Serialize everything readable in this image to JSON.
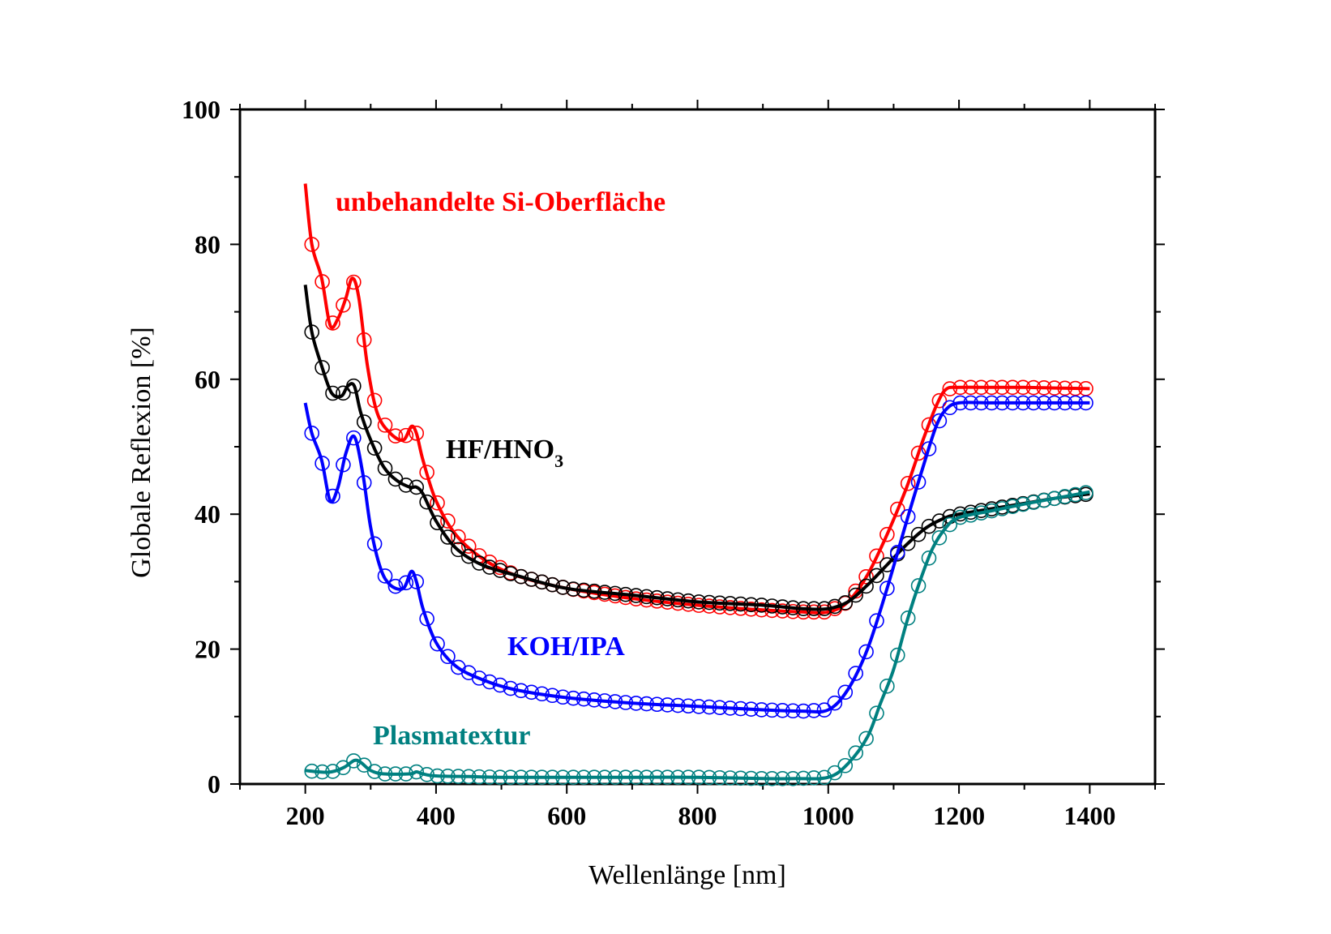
{
  "chart_data": {
    "type": "line",
    "title": "",
    "xlabel": "Wellenlänge [nm]",
    "ylabel": "Globale Reflexion [%]",
    "xlim": [
      100,
      1500
    ],
    "ylim": [
      0,
      100
    ],
    "xticks": [
      "200",
      "400",
      "600",
      "800",
      "1000",
      "1200",
      "1400"
    ],
    "yticks": [
      "0",
      "20",
      "40",
      "60",
      "80",
      "100"
    ],
    "grid": false,
    "markers": "open circles",
    "series": [
      {
        "name": "unbehandelte Si-Oberfläche",
        "color": "#ff0000",
        "label_text": "unbehandelte Si-Oberfläche",
        "x": [
          200,
          210,
          225,
          238,
          250,
          262,
          272,
          282,
          295,
          310,
          330,
          350,
          362,
          370,
          380,
          400,
          430,
          470,
          520,
          600,
          700,
          800,
          900,
          960,
          1000,
          1030,
          1060,
          1090,
          1120,
          1145,
          1165,
          1180,
          1200,
          1250,
          1300,
          1350,
          1400
        ],
        "y": [
          89,
          80,
          75,
          68,
          69,
          72,
          75,
          72,
          62,
          55,
          52,
          51,
          53,
          52,
          48,
          42,
          37,
          33.5,
          31,
          29,
          27.5,
          26.5,
          25.8,
          25.5,
          25.5,
          27,
          31,
          37,
          44,
          51,
          56,
          58.5,
          58.8,
          58.8,
          58.8,
          58.7,
          58.6
        ]
      },
      {
        "name": "HF/HNO3",
        "color": "#000000",
        "label_text": "HF/HNO",
        "label_sub": "3",
        "x": [
          200,
          210,
          225,
          240,
          255,
          265,
          275,
          285,
          300,
          320,
          340,
          360,
          370,
          380,
          400,
          430,
          470,
          520,
          600,
          700,
          800,
          900,
          960,
          1000,
          1030,
          1060,
          1090,
          1120,
          1150,
          1180,
          1200,
          1250,
          1300,
          1350,
          1400
        ],
        "y": [
          74,
          67,
          62,
          58,
          57.5,
          59,
          59,
          55,
          51,
          47,
          45,
          44,
          44,
          43,
          39,
          35,
          32.5,
          31,
          29,
          28,
          27,
          26.5,
          26,
          26,
          27,
          29.5,
          32.5,
          35.5,
          38,
          39.5,
          40,
          40.8,
          41.6,
          42.4,
          43
        ]
      },
      {
        "name": "KOH/IPA",
        "color": "#0000ff",
        "label_text": "KOH/IPA",
        "x": [
          200,
          210,
          225,
          238,
          250,
          262,
          275,
          288,
          300,
          315,
          330,
          350,
          362,
          370,
          380,
          400,
          430,
          470,
          520,
          600,
          700,
          800,
          900,
          960,
          1000,
          1030,
          1060,
          1090,
          1120,
          1145,
          1165,
          1180,
          1200,
          1250,
          1300,
          1350,
          1400
        ],
        "y": [
          56.5,
          52,
          48,
          42,
          44,
          49,
          51.5,
          46,
          38,
          32,
          29.5,
          29,
          31.5,
          30,
          26,
          21,
          17.5,
          15.5,
          14,
          12.8,
          12,
          11.5,
          11,
          10.8,
          11,
          14,
          20,
          29,
          39,
          47,
          53,
          55.5,
          56.5,
          56.5,
          56.5,
          56.5,
          56.5
        ]
      },
      {
        "name": "Plasmatextur",
        "color": "#008080",
        "label_text": "Plasmatextur",
        "x": [
          200,
          220,
          240,
          260,
          275,
          285,
          300,
          320,
          360,
          370,
          380,
          400,
          450,
          500,
          600,
          700,
          800,
          900,
          950,
          1000,
          1030,
          1060,
          1080,
          1100,
          1120,
          1140,
          1160,
          1180,
          1200,
          1250,
          1300,
          1350,
          1400
        ],
        "y": [
          2,
          1.8,
          1.8,
          2.5,
          3.5,
          3.2,
          2,
          1.5,
          1.5,
          1.8,
          1.5,
          1.2,
          1.1,
          1,
          1,
          1,
          1,
          0.8,
          0.8,
          1,
          3,
          7,
          12,
          17,
          24,
          30,
          35,
          38,
          39.5,
          40.5,
          41.5,
          42.4,
          43.3
        ]
      }
    ]
  }
}
